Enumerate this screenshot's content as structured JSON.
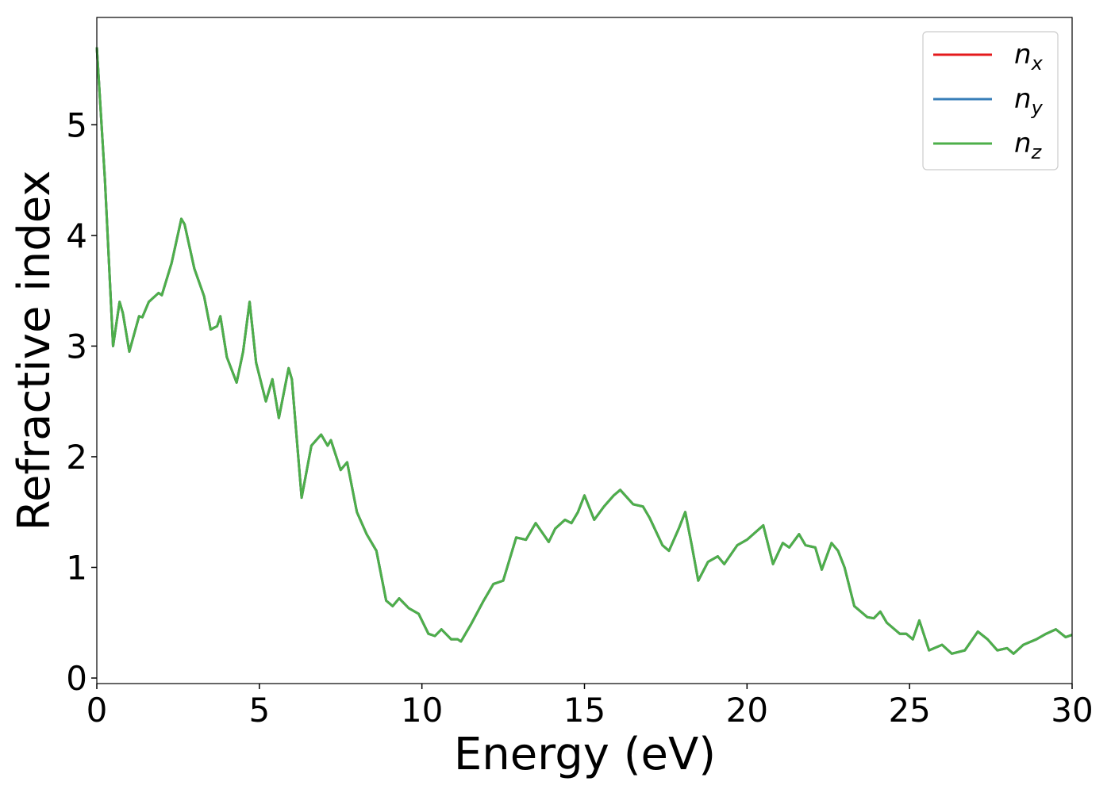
{
  "chart_data": {
    "type": "line",
    "xlabel": "Energy (eV)",
    "ylabel": "Refractive index",
    "xlim": [
      0,
      30
    ],
    "ylim": [
      -0.05,
      5.97
    ],
    "xticks": [
      0,
      5,
      10,
      15,
      20,
      25,
      30
    ],
    "yticks": [
      0,
      1,
      2,
      3,
      4,
      5
    ],
    "legend": "upper right",
    "x": [
      0,
      0.25,
      0.5,
      0.7,
      0.8,
      1.0,
      1.3,
      1.4,
      1.6,
      1.9,
      2.0,
      2.3,
      2.6,
      2.7,
      3.0,
      3.3,
      3.5,
      3.7,
      3.8,
      4.0,
      4.3,
      4.5,
      4.7,
      4.9,
      5.2,
      5.4,
      5.6,
      5.9,
      6.0,
      6.3,
      6.6,
      6.9,
      7.1,
      7.2,
      7.5,
      7.7,
      8.0,
      8.3,
      8.6,
      8.9,
      9.1,
      9.3,
      9.6,
      9.9,
      10.2,
      10.4,
      10.6,
      10.9,
      11.1,
      11.2,
      11.5,
      11.9,
      12.2,
      12.5,
      12.9,
      13.2,
      13.5,
      13.9,
      14.1,
      14.4,
      14.6,
      14.8,
      15.0,
      15.3,
      15.6,
      15.9,
      16.1,
      16.5,
      16.8,
      17.0,
      17.4,
      17.6,
      17.9,
      18.1,
      18.3,
      18.5,
      18.8,
      19.1,
      19.3,
      19.7,
      20.0,
      20.5,
      20.8,
      21.1,
      21.3,
      21.6,
      21.8,
      22.1,
      22.3,
      22.6,
      22.8,
      23.0,
      23.3,
      23.7,
      23.9,
      24.1,
      24.3,
      24.7,
      24.9,
      25.1,
      25.3,
      25.6,
      26.0,
      26.3,
      26.7,
      27.1,
      27.4,
      27.7,
      28.0,
      28.2,
      28.5,
      28.9,
      29.2,
      29.5,
      29.8,
      30.0
    ],
    "series": [
      {
        "name": "nx",
        "color": "#e41a1c",
        "values": [
          5.7,
          4.5,
          3.0,
          3.4,
          3.3,
          2.95,
          3.27,
          3.26,
          3.4,
          3.48,
          3.46,
          3.75,
          4.15,
          4.1,
          3.7,
          3.45,
          3.15,
          3.18,
          3.27,
          2.9,
          2.67,
          2.95,
          3.4,
          2.85,
          2.5,
          2.7,
          2.35,
          2.8,
          2.7,
          1.63,
          2.1,
          2.2,
          2.1,
          2.15,
          1.88,
          1.95,
          1.5,
          1.3,
          1.15,
          0.7,
          0.65,
          0.72,
          0.63,
          0.58,
          0.4,
          0.38,
          0.44,
          0.35,
          0.35,
          0.33,
          0.48,
          0.7,
          0.85,
          0.88,
          1.27,
          1.25,
          1.4,
          1.23,
          1.35,
          1.43,
          1.4,
          1.5,
          1.65,
          1.43,
          1.55,
          1.65,
          1.7,
          1.57,
          1.55,
          1.45,
          1.2,
          1.15,
          1.35,
          1.5,
          1.2,
          0.88,
          1.05,
          1.1,
          1.03,
          1.2,
          1.25,
          1.38,
          1.03,
          1.22,
          1.18,
          1.3,
          1.2,
          1.18,
          0.98,
          1.22,
          1.15,
          1.0,
          0.65,
          0.55,
          0.54,
          0.6,
          0.5,
          0.4,
          0.4,
          0.35,
          0.52,
          0.25,
          0.3,
          0.22,
          0.25,
          0.42,
          0.35,
          0.25,
          0.27,
          0.22,
          0.3,
          0.35,
          0.4,
          0.44,
          0.37,
          0.39
        ]
      },
      {
        "name": "ny",
        "color": "#377eb8",
        "values": [
          5.7,
          4.5,
          3.0,
          3.4,
          3.3,
          2.95,
          3.27,
          3.26,
          3.4,
          3.48,
          3.46,
          3.75,
          4.15,
          4.1,
          3.7,
          3.45,
          3.15,
          3.18,
          3.27,
          2.9,
          2.67,
          2.95,
          3.4,
          2.85,
          2.5,
          2.7,
          2.35,
          2.8,
          2.7,
          1.63,
          2.1,
          2.2,
          2.1,
          2.15,
          1.88,
          1.95,
          1.5,
          1.3,
          1.15,
          0.7,
          0.65,
          0.72,
          0.63,
          0.58,
          0.4,
          0.38,
          0.44,
          0.35,
          0.35,
          0.33,
          0.48,
          0.7,
          0.85,
          0.88,
          1.27,
          1.25,
          1.4,
          1.23,
          1.35,
          1.43,
          1.4,
          1.5,
          1.65,
          1.43,
          1.55,
          1.65,
          1.7,
          1.57,
          1.55,
          1.45,
          1.2,
          1.15,
          1.35,
          1.5,
          1.2,
          0.88,
          1.05,
          1.1,
          1.03,
          1.2,
          1.25,
          1.38,
          1.03,
          1.22,
          1.18,
          1.3,
          1.2,
          1.18,
          0.98,
          1.22,
          1.15,
          1.0,
          0.65,
          0.55,
          0.54,
          0.6,
          0.5,
          0.4,
          0.4,
          0.35,
          0.52,
          0.25,
          0.3,
          0.22,
          0.25,
          0.42,
          0.35,
          0.25,
          0.27,
          0.22,
          0.3,
          0.35,
          0.4,
          0.44,
          0.37,
          0.39
        ]
      },
      {
        "name": "nz",
        "color": "#4daf4a",
        "values": [
          5.7,
          4.5,
          3.0,
          3.4,
          3.3,
          2.95,
          3.27,
          3.26,
          3.4,
          3.48,
          3.46,
          3.75,
          4.15,
          4.1,
          3.7,
          3.45,
          3.15,
          3.18,
          3.27,
          2.9,
          2.67,
          2.95,
          3.4,
          2.85,
          2.5,
          2.7,
          2.35,
          2.8,
          2.7,
          1.63,
          2.1,
          2.2,
          2.1,
          2.15,
          1.88,
          1.95,
          1.5,
          1.3,
          1.15,
          0.7,
          0.65,
          0.72,
          0.63,
          0.58,
          0.4,
          0.38,
          0.44,
          0.35,
          0.35,
          0.33,
          0.48,
          0.7,
          0.85,
          0.88,
          1.27,
          1.25,
          1.4,
          1.23,
          1.35,
          1.43,
          1.4,
          1.5,
          1.65,
          1.43,
          1.55,
          1.65,
          1.7,
          1.57,
          1.55,
          1.45,
          1.2,
          1.15,
          1.35,
          1.5,
          1.2,
          0.88,
          1.05,
          1.1,
          1.03,
          1.2,
          1.25,
          1.38,
          1.03,
          1.22,
          1.18,
          1.3,
          1.2,
          1.18,
          0.98,
          1.22,
          1.15,
          1.0,
          0.65,
          0.55,
          0.54,
          0.6,
          0.5,
          0.4,
          0.4,
          0.35,
          0.52,
          0.25,
          0.3,
          0.22,
          0.25,
          0.42,
          0.35,
          0.25,
          0.27,
          0.22,
          0.3,
          0.35,
          0.4,
          0.44,
          0.37,
          0.39
        ]
      }
    ]
  }
}
